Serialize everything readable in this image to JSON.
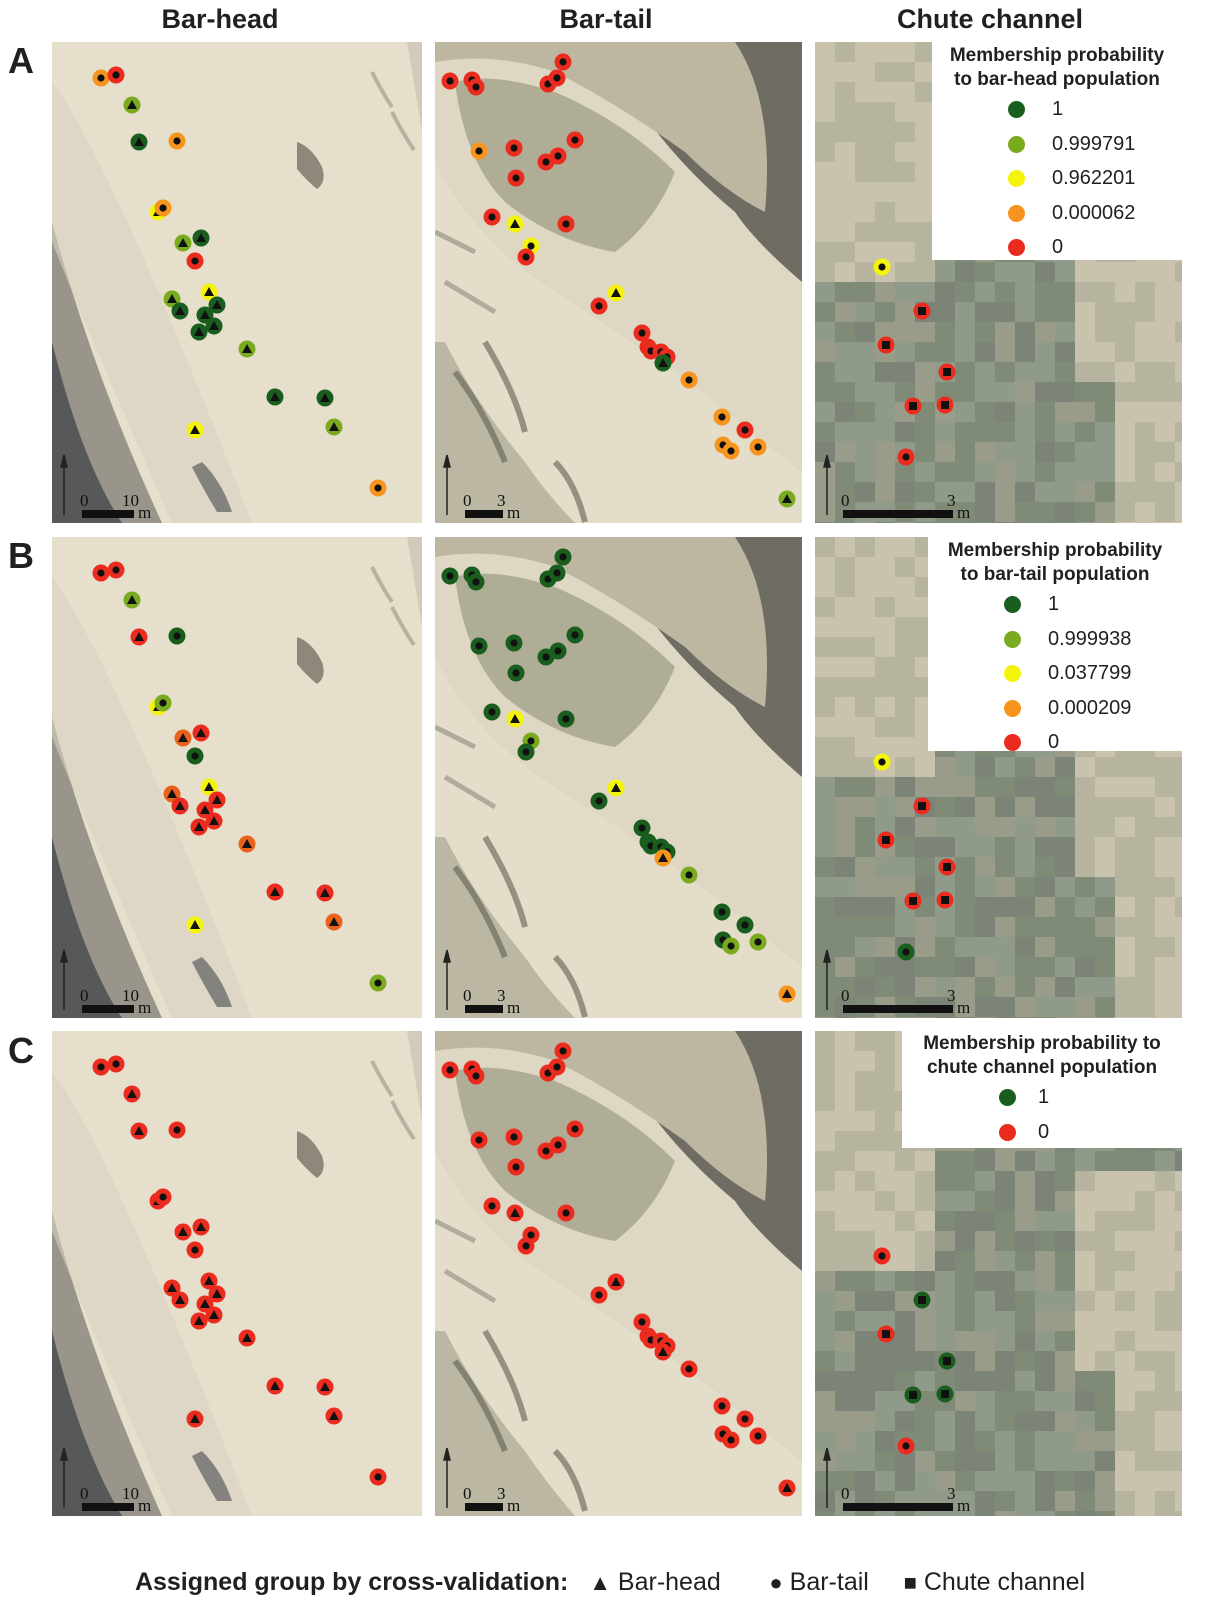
{
  "column_titles": [
    "Bar-head",
    "Bar-tail",
    "Chute channel"
  ],
  "row_labels": [
    "A",
    "B",
    "C"
  ],
  "colors": {
    "1": "#1a5e1f",
    "0.999791": "#7aab1f",
    "0.999938": "#7aab1f",
    "0.962201": "#f4f40a",
    "0.037799": "#f4f40a",
    "0.000062": "#f7941d",
    "0.000209": "#f7941d",
    "mid": "#e8621a",
    "0": "#ec2b1f"
  },
  "legends": [
    {
      "title_lines": [
        "Membership probability",
        "to bar-head population"
      ],
      "items": [
        {
          "label": "1",
          "color": "#1a5e1f"
        },
        {
          "label": "0.999791",
          "color": "#7aab1f"
        },
        {
          "label": "0.962201",
          "color": "#f4f40a"
        },
        {
          "label": "0.000062",
          "color": "#f7941d"
        },
        {
          "label": "0",
          "color": "#ec2b1f"
        }
      ]
    },
    {
      "title_lines": [
        "Membership probability",
        "to bar-tail population"
      ],
      "items": [
        {
          "label": "1",
          "color": "#1a5e1f"
        },
        {
          "label": "0.999938",
          "color": "#7aab1f"
        },
        {
          "label": "0.037799",
          "color": "#f4f40a"
        },
        {
          "label": "0.000209",
          "color": "#f7941d"
        },
        {
          "label": "0",
          "color": "#ec2b1f"
        }
      ]
    },
    {
      "title_lines": [
        "Membership probability to",
        "chute channel population"
      ],
      "items": [
        {
          "label": "1",
          "color": "#1a5e1f"
        },
        {
          "label": "0",
          "color": "#ec2b1f"
        }
      ]
    }
  ],
  "scale_bars": [
    {
      "zero": "0",
      "value": "10",
      "unit": "m"
    },
    {
      "zero": "0",
      "value": "3",
      "unit": "m"
    },
    {
      "zero": "0",
      "value": "3",
      "unit": "m"
    }
  ],
  "footer": {
    "title": "Assigned group by cross-validation:",
    "items": [
      {
        "symbol": "▲",
        "label": "Bar-head"
      },
      {
        "symbol": "●",
        "label": "Bar-tail"
      },
      {
        "symbol": "■",
        "label": "Chute channel"
      }
    ]
  },
  "markers": {
    "bar_head": [
      {
        "s": "c",
        "p": [
          6.2e-05,
          0,
          0
        ]
      },
      {
        "s": "c",
        "p": [
          0,
          0,
          0
        ]
      },
      {
        "s": "t",
        "p": [
          0.999791,
          0.999938,
          0
        ]
      },
      {
        "s": "t",
        "p": [
          1,
          0,
          0
        ]
      },
      {
        "s": "c",
        "p": [
          6.2e-05,
          1,
          0
        ]
      },
      {
        "s": "t",
        "p": [
          0.962201,
          0.037799,
          0
        ]
      },
      {
        "s": "c",
        "p": [
          6.2e-05,
          0.999938,
          0
        ]
      },
      {
        "s": "t",
        "p": [
          0.999791,
          0.000209,
          0
        ]
      },
      {
        "s": "t",
        "p": [
          1,
          0,
          0
        ]
      },
      {
        "s": "c",
        "p": [
          0,
          1,
          0
        ]
      },
      {
        "s": "t",
        "p": [
          0.962201,
          0.037799,
          0
        ]
      },
      {
        "s": "t",
        "p": [
          0.999791,
          0.000209,
          0
        ]
      },
      {
        "s": "t",
        "p": [
          1,
          0,
          0
        ]
      },
      {
        "s": "t",
        "p": [
          1,
          0,
          0
        ]
      },
      {
        "s": "t",
        "p": [
          1,
          0,
          0
        ]
      },
      {
        "s": "t",
        "p": [
          1,
          0,
          0
        ]
      },
      {
        "s": "t",
        "p": [
          1,
          0,
          0
        ]
      },
      {
        "s": "t",
        "p": [
          0.999791,
          0.000209,
          0
        ]
      },
      {
        "s": "t",
        "p": [
          1,
          0,
          0
        ]
      },
      {
        "s": "t",
        "p": [
          1,
          0,
          0
        ]
      },
      {
        "s": "t",
        "p": [
          0.962201,
          0.037799,
          0
        ]
      },
      {
        "s": "t",
        "p": [
          0.999791,
          0.000209,
          0
        ]
      },
      {
        "s": "c",
        "p": [
          6.2e-05,
          0.999938,
          0
        ]
      }
    ],
    "bar_tail": [
      {
        "s": "c",
        "p": [
          0,
          1,
          0
        ]
      },
      {
        "s": "c",
        "p": [
          0,
          1,
          0
        ]
      },
      {
        "s": "c",
        "p": [
          0,
          1,
          0
        ]
      },
      {
        "s": "c",
        "p": [
          0,
          1,
          0
        ]
      },
      {
        "s": "c",
        "p": [
          0,
          1,
          0
        ]
      },
      {
        "s": "c",
        "p": [
          0,
          1,
          0
        ]
      },
      {
        "s": "c",
        "p": [
          6.2e-05,
          1,
          0
        ]
      },
      {
        "s": "c",
        "p": [
          0,
          1,
          0
        ]
      },
      {
        "s": "c",
        "p": [
          0,
          1,
          0
        ]
      },
      {
        "s": "c",
        "p": [
          0,
          1,
          0
        ]
      },
      {
        "s": "c",
        "p": [
          0,
          1,
          0
        ]
      },
      {
        "s": "c",
        "p": [
          0,
          1,
          0
        ]
      },
      {
        "s": "c",
        "p": [
          0,
          1,
          0
        ]
      },
      {
        "s": "t",
        "p": [
          0.962201,
          0.037799,
          0
        ]
      },
      {
        "s": "c",
        "p": [
          0,
          1,
          0
        ]
      },
      {
        "s": "c",
        "p": [
          0.962201,
          0.999938,
          0
        ]
      },
      {
        "s": "c",
        "p": [
          0,
          1,
          0
        ]
      },
      {
        "s": "c",
        "p": [
          0,
          1,
          0
        ]
      },
      {
        "s": "t",
        "p": [
          0.962201,
          0.037799,
          0
        ]
      },
      {
        "s": "c",
        "p": [
          0,
          1,
          0
        ]
      },
      {
        "s": "c",
        "p": [
          0,
          1,
          0
        ]
      },
      {
        "s": "c",
        "p": [
          0,
          1,
          0
        ]
      },
      {
        "s": "c",
        "p": [
          0,
          1,
          0
        ]
      },
      {
        "s": "c",
        "p": [
          0,
          1,
          0
        ]
      },
      {
        "s": "t",
        "p": [
          1,
          0.000209,
          0
        ]
      },
      {
        "s": "c",
        "p": [
          6.2e-05,
          0.999938,
          0
        ]
      },
      {
        "s": "c",
        "p": [
          6.2e-05,
          1,
          0
        ]
      },
      {
        "s": "c",
        "p": [
          0,
          1,
          0
        ]
      },
      {
        "s": "c",
        "p": [
          6.2e-05,
          1,
          0
        ]
      },
      {
        "s": "c",
        "p": [
          6.2e-05,
          0.999938,
          0
        ]
      },
      {
        "s": "c",
        "p": [
          6.2e-05,
          0.999938,
          0
        ]
      },
      {
        "s": "t",
        "p": [
          0.999791,
          0.000209,
          0
        ]
      }
    ],
    "chute": [
      {
        "s": "c",
        "p": [
          0.962201,
          0.037799,
          0
        ]
      },
      {
        "s": "q",
        "p": [
          0,
          0,
          1
        ]
      },
      {
        "s": "q",
        "p": [
          0,
          0,
          0
        ]
      },
      {
        "s": "q",
        "p": [
          0,
          0,
          1
        ]
      },
      {
        "s": "q",
        "p": [
          0,
          0,
          1
        ]
      },
      {
        "s": "q",
        "p": [
          0,
          0,
          1
        ]
      },
      {
        "s": "c",
        "p": [
          0,
          1,
          0
        ]
      }
    ]
  }
}
